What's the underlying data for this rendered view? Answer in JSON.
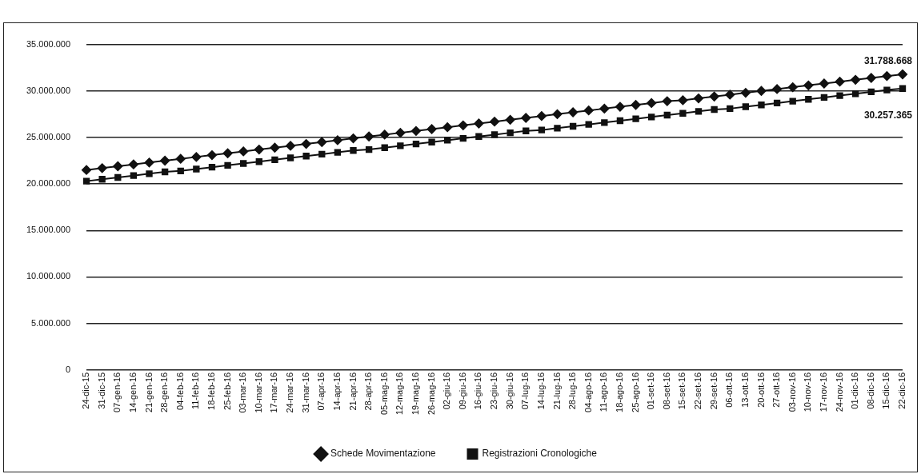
{
  "chart_data": {
    "type": "line",
    "categories": [
      "24-dic-15",
      "31-dic-15",
      "07-gen-16",
      "14-gen-16",
      "21-gen-16",
      "28-gen-16",
      "04-feb-16",
      "11-feb-16",
      "18-feb-16",
      "25-feb-16",
      "03-mar-16",
      "10-mar-16",
      "17-mar-16",
      "24-mar-16",
      "31-mar-16",
      "07-apr-16",
      "14-apr-16",
      "21-apr-16",
      "28-apr-16",
      "05-mag-16",
      "12-mag-16",
      "19-mag-16",
      "26-mag-16",
      "02-giu-16",
      "09-giu-16",
      "16-giu-16",
      "23-giu-16",
      "30-giu-16",
      "07-lug-16",
      "14-lug-16",
      "21-lug-16",
      "28-lug-16",
      "04-ago-16",
      "11-ago-16",
      "18-ago-16",
      "25-ago-16",
      "01-set-16",
      "08-set-16",
      "15-set-16",
      "22-set-16",
      "29-set-16",
      "06-ott-16",
      "13-ott-16",
      "20-ott-16",
      "27-ott-16",
      "03-nov-16",
      "10-nov-16",
      "17-nov-16",
      "24-nov-16",
      "01-dic-16",
      "08-dic-16",
      "15-dic-16",
      "22-dic-16"
    ],
    "series": [
      {
        "name": "Schede Movimentazione",
        "color": "#111111",
        "marker": "diamond",
        "values": [
          21500000,
          21700000,
          21900000,
          22100000,
          22300000,
          22500000,
          22700000,
          22900000,
          23100000,
          23300000,
          23500000,
          23700000,
          23900000,
          24100000,
          24300000,
          24500000,
          24700000,
          24900000,
          25100000,
          25300000,
          25500000,
          25700000,
          25900000,
          26100000,
          26300000,
          26500000,
          26700000,
          26900000,
          27100000,
          27300000,
          27500000,
          27700000,
          27900000,
          28100000,
          28300000,
          28500000,
          28700000,
          28900000,
          29000000,
          29200000,
          29400000,
          29600000,
          29800000,
          30000000,
          30200000,
          30400000,
          30600000,
          30800000,
          31000000,
          31200000,
          31400000,
          31600000,
          31788668
        ]
      },
      {
        "name": "Registrazioni Cronologiche",
        "color": "#111111",
        "marker": "square",
        "values": [
          20300000,
          20500000,
          20700000,
          20900000,
          21100000,
          21300000,
          21400000,
          21600000,
          21800000,
          22000000,
          22200000,
          22400000,
          22600000,
          22800000,
          23000000,
          23200000,
          23400000,
          23600000,
          23700000,
          23900000,
          24100000,
          24300000,
          24500000,
          24700000,
          24900000,
          25100000,
          25300000,
          25500000,
          25700000,
          25800000,
          26000000,
          26200000,
          26400000,
          26600000,
          26800000,
          27000000,
          27200000,
          27400000,
          27600000,
          27800000,
          28000000,
          28100000,
          28300000,
          28500000,
          28700000,
          28900000,
          29100000,
          29300000,
          29500000,
          29700000,
          29900000,
          30100000,
          30257365
        ]
      }
    ],
    "ylim": [
      0,
      35000000
    ],
    "yticks": [
      {
        "value": 0,
        "label": "0"
      },
      {
        "value": 5000000,
        "label": "5.000.000"
      },
      {
        "value": 10000000,
        "label": "10.000.000"
      },
      {
        "value": 15000000,
        "label": "15.000.000"
      },
      {
        "value": 20000000,
        "label": "20.000.000"
      },
      {
        "value": 25000000,
        "label": "25.000.000"
      },
      {
        "value": 30000000,
        "label": "30.000.000"
      },
      {
        "value": 35000000,
        "label": "35.000.000"
      }
    ],
    "grid": "y",
    "legend": "bottom",
    "line_style": "solid",
    "annotations": [
      {
        "text": "31.788.668",
        "x": "22-dic-16",
        "y": 31788668
      },
      {
        "text": "30.257.365",
        "x": "22-dic-16",
        "y": 30257365
      }
    ]
  }
}
